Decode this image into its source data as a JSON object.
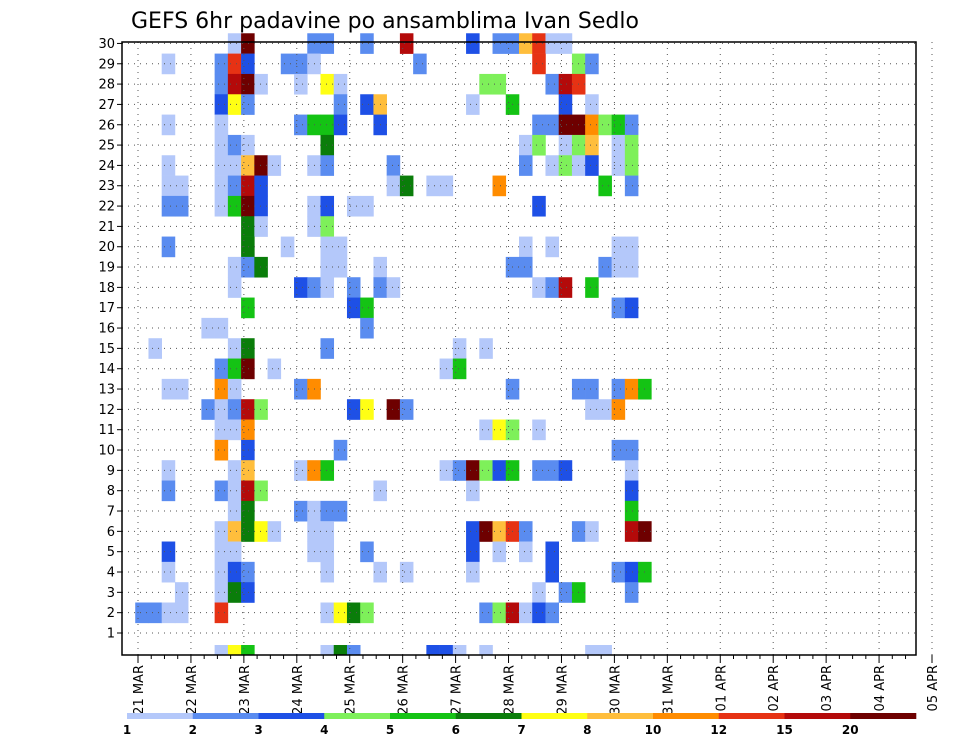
{
  "chart_data": {
    "type": "heatmap",
    "title": "GEFS 6hr padavine po ansamblima Ivan Sedlo",
    "xlabel": "",
    "ylabel": "",
    "x_tick_labels": [
      "21 MAR",
      "22 MAR",
      "23 MAR",
      "24 MAR",
      "25 MAR",
      "26 MAR",
      "27 MAR",
      "28 MAR",
      "29 MAR",
      "30 MAR",
      "31 MAR",
      "01 APR",
      "02 APR",
      "03 APR",
      "04 APR",
      "05 APR"
    ],
    "x_step_unit": "6-hour steps; 4 steps per day; 60 steps shown (21 MAR to 05 APR)",
    "y_members": [
      1,
      2,
      3,
      4,
      5,
      6,
      7,
      8,
      9,
      10,
      11,
      12,
      13,
      14,
      15,
      16,
      17,
      18,
      19,
      20,
      21,
      22,
      23,
      24,
      25,
      26,
      27,
      28,
      29,
      30
    ],
    "y_tick_labels": [
      "1",
      "2",
      "3",
      "4",
      "5",
      "6",
      "7",
      "8",
      "9",
      "10",
      "11",
      "12",
      "13",
      "14",
      "15",
      "16",
      "17",
      "18",
      "19",
      "20",
      "21",
      "22",
      "23",
      "24",
      "25",
      "26",
      "27",
      "28",
      "29",
      "30"
    ],
    "colorbar": {
      "labels": [
        "1",
        "2",
        "3",
        "4",
        "5",
        "6",
        "7",
        "8",
        "10",
        "12",
        "15",
        "20"
      ],
      "colors": [
        "#b4c8fa",
        "#5a8cf0",
        "#1e50e6",
        "#7ef05a",
        "#14c314",
        "#0a7d0a",
        "#ffff14",
        "#ffbe3c",
        "#ff8c00",
        "#e63214",
        "#b40a0a",
        "#6e0000"
      ]
    },
    "cells": [
      [
        30,
        8,
        0
      ],
      [
        30,
        9,
        11
      ],
      [
        30,
        14,
        1
      ],
      [
        30,
        15,
        1
      ],
      [
        30,
        18,
        1
      ],
      [
        30,
        21,
        10
      ],
      [
        30,
        26,
        2
      ],
      [
        30,
        28,
        1
      ],
      [
        30,
        29,
        1
      ],
      [
        30,
        30,
        7
      ],
      [
        30,
        31,
        9
      ],
      [
        30,
        32,
        0
      ],
      [
        30,
        33,
        0
      ],
      [
        29,
        3,
        0
      ],
      [
        29,
        7,
        1
      ],
      [
        29,
        8,
        9
      ],
      [
        29,
        9,
        2
      ],
      [
        29,
        12,
        1
      ],
      [
        29,
        13,
        1
      ],
      [
        29,
        14,
        0
      ],
      [
        29,
        22,
        1
      ],
      [
        29,
        31,
        9
      ],
      [
        29,
        34,
        3
      ],
      [
        29,
        35,
        1
      ],
      [
        28,
        7,
        1
      ],
      [
        28,
        8,
        10
      ],
      [
        28,
        9,
        11
      ],
      [
        28,
        10,
        0
      ],
      [
        28,
        13,
        0
      ],
      [
        28,
        15,
        6
      ],
      [
        28,
        16,
        0
      ],
      [
        28,
        27,
        3
      ],
      [
        28,
        28,
        3
      ],
      [
        28,
        32,
        1
      ],
      [
        28,
        33,
        10
      ],
      [
        28,
        34,
        9
      ],
      [
        27,
        7,
        2
      ],
      [
        27,
        8,
        6
      ],
      [
        27,
        9,
        1
      ],
      [
        27,
        16,
        1
      ],
      [
        27,
        18,
        2
      ],
      [
        27,
        19,
        7
      ],
      [
        27,
        26,
        0
      ],
      [
        27,
        29,
        4
      ],
      [
        27,
        33,
        2
      ],
      [
        27,
        35,
        0
      ],
      [
        26,
        3,
        0
      ],
      [
        26,
        7,
        0
      ],
      [
        26,
        13,
        1
      ],
      [
        26,
        14,
        4
      ],
      [
        26,
        15,
        4
      ],
      [
        26,
        16,
        2
      ],
      [
        26,
        19,
        2
      ],
      [
        26,
        31,
        1
      ],
      [
        26,
        32,
        1
      ],
      [
        26,
        33,
        11
      ],
      [
        26,
        34,
        11
      ],
      [
        26,
        35,
        8
      ],
      [
        26,
        36,
        3
      ],
      [
        26,
        37,
        4
      ],
      [
        26,
        38,
        1
      ],
      [
        25,
        7,
        0
      ],
      [
        25,
        8,
        1
      ],
      [
        25,
        9,
        0
      ],
      [
        25,
        15,
        5
      ],
      [
        25,
        30,
        0
      ],
      [
        25,
        31,
        3
      ],
      [
        25,
        33,
        0
      ],
      [
        25,
        34,
        3
      ],
      [
        25,
        35,
        7
      ],
      [
        25,
        37,
        0
      ],
      [
        25,
        38,
        3
      ],
      [
        24,
        3,
        0
      ],
      [
        24,
        7,
        0
      ],
      [
        24,
        8,
        0
      ],
      [
        24,
        9,
        7
      ],
      [
        24,
        10,
        11
      ],
      [
        24,
        11,
        0
      ],
      [
        24,
        14,
        0
      ],
      [
        24,
        15,
        1
      ],
      [
        24,
        20,
        1
      ],
      [
        24,
        30,
        1
      ],
      [
        24,
        32,
        0
      ],
      [
        24,
        33,
        3
      ],
      [
        24,
        34,
        0
      ],
      [
        24,
        35,
        2
      ],
      [
        24,
        37,
        0
      ],
      [
        24,
        38,
        3
      ],
      [
        23,
        3,
        0
      ],
      [
        23,
        4,
        0
      ],
      [
        23,
        7,
        0
      ],
      [
        23,
        8,
        1
      ],
      [
        23,
        9,
        10
      ],
      [
        23,
        10,
        2
      ],
      [
        23,
        20,
        0
      ],
      [
        23,
        21,
        5
      ],
      [
        23,
        23,
        0
      ],
      [
        23,
        24,
        0
      ],
      [
        23,
        28,
        8
      ],
      [
        23,
        36,
        4
      ],
      [
        23,
        38,
        1
      ],
      [
        22,
        3,
        1
      ],
      [
        22,
        4,
        1
      ],
      [
        22,
        7,
        0
      ],
      [
        22,
        8,
        4
      ],
      [
        22,
        9,
        11
      ],
      [
        22,
        10,
        2
      ],
      [
        22,
        14,
        0
      ],
      [
        22,
        15,
        2
      ],
      [
        22,
        17,
        0
      ],
      [
        22,
        18,
        0
      ],
      [
        22,
        31,
        2
      ],
      [
        21,
        9,
        5
      ],
      [
        21,
        10,
        0
      ],
      [
        21,
        14,
        0
      ],
      [
        21,
        15,
        3
      ],
      [
        20,
        3,
        1
      ],
      [
        20,
        9,
        5
      ],
      [
        20,
        12,
        0
      ],
      [
        20,
        15,
        0
      ],
      [
        20,
        16,
        0
      ],
      [
        20,
        30,
        0
      ],
      [
        20,
        32,
        0
      ],
      [
        20,
        37,
        0
      ],
      [
        20,
        38,
        0
      ],
      [
        19,
        8,
        0
      ],
      [
        19,
        9,
        1
      ],
      [
        19,
        10,
        5
      ],
      [
        19,
        15,
        0
      ],
      [
        19,
        16,
        0
      ],
      [
        19,
        19,
        0
      ],
      [
        19,
        29,
        1
      ],
      [
        19,
        30,
        1
      ],
      [
        19,
        36,
        1
      ],
      [
        19,
        37,
        0
      ],
      [
        19,
        38,
        0
      ],
      [
        18,
        8,
        0
      ],
      [
        18,
        13,
        2
      ],
      [
        18,
        14,
        1
      ],
      [
        18,
        15,
        0
      ],
      [
        18,
        17,
        1
      ],
      [
        18,
        19,
        1
      ],
      [
        18,
        20,
        0
      ],
      [
        18,
        31,
        0
      ],
      [
        18,
        32,
        1
      ],
      [
        18,
        33,
        10
      ],
      [
        18,
        35,
        4
      ],
      [
        17,
        9,
        4
      ],
      [
        17,
        17,
        2
      ],
      [
        17,
        18,
        4
      ],
      [
        17,
        37,
        1
      ],
      [
        17,
        38,
        2
      ],
      [
        16,
        6,
        0
      ],
      [
        16,
        7,
        0
      ],
      [
        16,
        18,
        1
      ],
      [
        15,
        2,
        0
      ],
      [
        15,
        8,
        0
      ],
      [
        15,
        9,
        5
      ],
      [
        15,
        15,
        1
      ],
      [
        15,
        25,
        0
      ],
      [
        15,
        27,
        0
      ],
      [
        14,
        7,
        1
      ],
      [
        14,
        8,
        4
      ],
      [
        14,
        9,
        11
      ],
      [
        14,
        11,
        0
      ],
      [
        14,
        24,
        0
      ],
      [
        14,
        25,
        4
      ],
      [
        13,
        3,
        0
      ],
      [
        13,
        4,
        0
      ],
      [
        13,
        7,
        8
      ],
      [
        13,
        8,
        0
      ],
      [
        13,
        13,
        1
      ],
      [
        13,
        14,
        8
      ],
      [
        13,
        29,
        1
      ],
      [
        13,
        34,
        1
      ],
      [
        13,
        35,
        1
      ],
      [
        13,
        37,
        1
      ],
      [
        13,
        38,
        8
      ],
      [
        13,
        39,
        4
      ],
      [
        12,
        6,
        1
      ],
      [
        12,
        7,
        0
      ],
      [
        12,
        8,
        1
      ],
      [
        12,
        9,
        10
      ],
      [
        12,
        10,
        3
      ],
      [
        12,
        17,
        2
      ],
      [
        12,
        18,
        6
      ],
      [
        12,
        20,
        11
      ],
      [
        12,
        21,
        1
      ],
      [
        12,
        35,
        0
      ],
      [
        12,
        36,
        0
      ],
      [
        12,
        37,
        8
      ],
      [
        11,
        7,
        0
      ],
      [
        11,
        8,
        0
      ],
      [
        11,
        9,
        8
      ],
      [
        11,
        27,
        0
      ],
      [
        11,
        28,
        6
      ],
      [
        11,
        29,
        3
      ],
      [
        11,
        31,
        0
      ],
      [
        10,
        7,
        8
      ],
      [
        10,
        9,
        2
      ],
      [
        10,
        16,
        1
      ],
      [
        10,
        37,
        1
      ],
      [
        10,
        38,
        1
      ],
      [
        9,
        3,
        0
      ],
      [
        9,
        8,
        0
      ],
      [
        9,
        9,
        7
      ],
      [
        9,
        13,
        0
      ],
      [
        9,
        14,
        8
      ],
      [
        9,
        15,
        4
      ],
      [
        9,
        24,
        0
      ],
      [
        9,
        25,
        1
      ],
      [
        9,
        26,
        11
      ],
      [
        9,
        27,
        3
      ],
      [
        9,
        28,
        2
      ],
      [
        9,
        29,
        4
      ],
      [
        9,
        31,
        1
      ],
      [
        9,
        32,
        1
      ],
      [
        9,
        33,
        2
      ],
      [
        9,
        38,
        0
      ],
      [
        8,
        3,
        1
      ],
      [
        8,
        7,
        1
      ],
      [
        8,
        8,
        0
      ],
      [
        8,
        9,
        10
      ],
      [
        8,
        10,
        3
      ],
      [
        8,
        19,
        0
      ],
      [
        8,
        26,
        0
      ],
      [
        8,
        38,
        2
      ],
      [
        7,
        8,
        0
      ],
      [
        7,
        9,
        5
      ],
      [
        7,
        13,
        1
      ],
      [
        7,
        14,
        0
      ],
      [
        7,
        15,
        1
      ],
      [
        7,
        16,
        1
      ],
      [
        7,
        38,
        4
      ],
      [
        6,
        7,
        0
      ],
      [
        6,
        8,
        7
      ],
      [
        6,
        9,
        5
      ],
      [
        6,
        10,
        6
      ],
      [
        6,
        11,
        0
      ],
      [
        6,
        14,
        0
      ],
      [
        6,
        15,
        0
      ],
      [
        6,
        26,
        2
      ],
      [
        6,
        27,
        11
      ],
      [
        6,
        28,
        7
      ],
      [
        6,
        29,
        9
      ],
      [
        6,
        30,
        1
      ],
      [
        6,
        34,
        1
      ],
      [
        6,
        35,
        0
      ],
      [
        6,
        38,
        10
      ],
      [
        6,
        39,
        11
      ],
      [
        5,
        3,
        2
      ],
      [
        5,
        7,
        0
      ],
      [
        5,
        8,
        0
      ],
      [
        5,
        14,
        0
      ],
      [
        5,
        15,
        0
      ],
      [
        5,
        18,
        1
      ],
      [
        5,
        26,
        2
      ],
      [
        5,
        28,
        0
      ],
      [
        5,
        30,
        0
      ],
      [
        5,
        32,
        2
      ],
      [
        4,
        3,
        0
      ],
      [
        4,
        7,
        0
      ],
      [
        4,
        8,
        2
      ],
      [
        4,
        9,
        1
      ],
      [
        4,
        15,
        0
      ],
      [
        4,
        19,
        0
      ],
      [
        4,
        21,
        0
      ],
      [
        4,
        26,
        0
      ],
      [
        4,
        32,
        2
      ],
      [
        4,
        37,
        1
      ],
      [
        4,
        38,
        2
      ],
      [
        4,
        39,
        4
      ],
      [
        3,
        4,
        0
      ],
      [
        3,
        7,
        0
      ],
      [
        3,
        8,
        5
      ],
      [
        3,
        9,
        2
      ],
      [
        3,
        31,
        0
      ],
      [
        3,
        33,
        1
      ],
      [
        3,
        34,
        4
      ],
      [
        3,
        38,
        1
      ],
      [
        2,
        1,
        1
      ],
      [
        2,
        2,
        1
      ],
      [
        2,
        3,
        0
      ],
      [
        2,
        4,
        0
      ],
      [
        2,
        7,
        9
      ],
      [
        2,
        15,
        0
      ],
      [
        2,
        16,
        6
      ],
      [
        2,
        17,
        5
      ],
      [
        2,
        18,
        3
      ],
      [
        2,
        27,
        1
      ],
      [
        2,
        28,
        3
      ],
      [
        2,
        29,
        10
      ],
      [
        2,
        30,
        0
      ],
      [
        2,
        31,
        2
      ],
      [
        2,
        32,
        1
      ]
    ],
    "bottom_strip": [
      [
        7,
        0
      ],
      [
        8,
        6
      ],
      [
        9,
        4
      ],
      [
        15,
        0
      ],
      [
        16,
        5
      ],
      [
        17,
        1
      ],
      [
        23,
        2
      ],
      [
        24,
        2
      ],
      [
        25,
        0
      ],
      [
        27,
        0
      ],
      [
        35,
        0
      ],
      [
        36,
        0
      ]
    ]
  }
}
